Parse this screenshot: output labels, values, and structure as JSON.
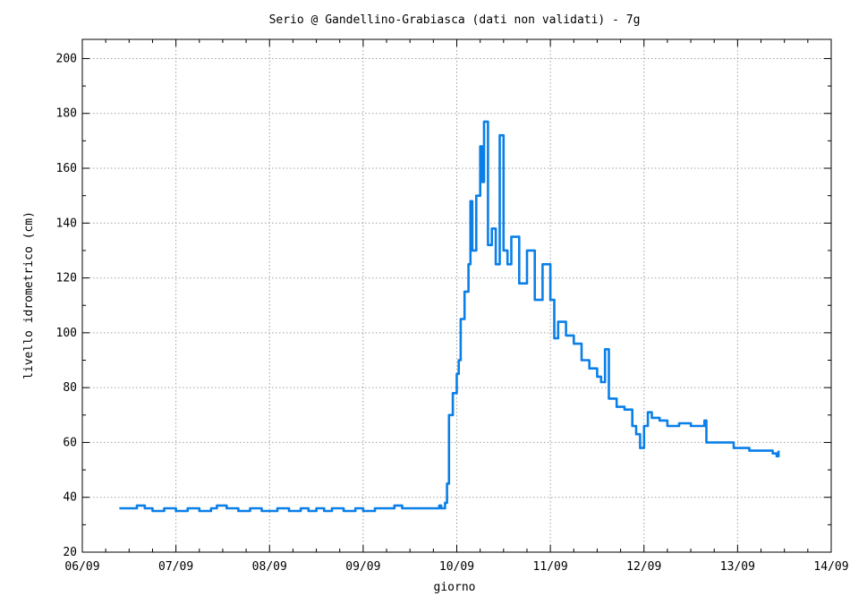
{
  "chart_data": {
    "type": "line",
    "title": "Serio @ Gandellino-Grabiasca (dati non validati) - 7g",
    "xlabel": "giorno",
    "ylabel": "livello idrometrico (cm)",
    "x_tick_labels": [
      "06/09",
      "07/09",
      "08/09",
      "09/09",
      "10/09",
      "11/09",
      "12/09",
      "13/09",
      "14/09"
    ],
    "y_ticks": [
      20,
      40,
      60,
      80,
      100,
      120,
      140,
      160,
      180,
      200
    ],
    "xlim": [
      "06/09 00:00",
      "14/09 00:00"
    ],
    "ylim": [
      20,
      207
    ],
    "grid": true,
    "line_color": "#0a7fe8",
    "series": [
      {
        "name": "",
        "points": [
          [
            "06/09 09:30",
            36
          ],
          [
            "06/09 12:00",
            36
          ],
          [
            "06/09 14:00",
            37
          ],
          [
            "06/09 16:00",
            36
          ],
          [
            "06/09 18:00",
            35
          ],
          [
            "06/09 21:00",
            36
          ],
          [
            "07/09 00:00",
            35
          ],
          [
            "07/09 03:00",
            36
          ],
          [
            "07/09 06:00",
            35
          ],
          [
            "07/09 09:00",
            36
          ],
          [
            "07/09 10:30",
            37
          ],
          [
            "07/09 13:00",
            36
          ],
          [
            "07/09 16:00",
            35
          ],
          [
            "07/09 19:00",
            36
          ],
          [
            "07/09 22:00",
            35
          ],
          [
            "08/09 02:00",
            36
          ],
          [
            "08/09 05:00",
            35
          ],
          [
            "08/09 08:00",
            36
          ],
          [
            "08/09 10:00",
            35
          ],
          [
            "08/09 12:00",
            36
          ],
          [
            "08/09 14:00",
            35
          ],
          [
            "08/09 16:00",
            36
          ],
          [
            "08/09 19:00",
            35
          ],
          [
            "08/09 22:00",
            36
          ],
          [
            "09/09 00:00",
            35
          ],
          [
            "09/09 03:00",
            36
          ],
          [
            "09/09 06:00",
            36
          ],
          [
            "09/09 08:00",
            37
          ],
          [
            "09/09 10:00",
            36
          ],
          [
            "09/09 12:00",
            36
          ],
          [
            "09/09 15:00",
            36
          ],
          [
            "09/09 18:00",
            36
          ],
          [
            "09/09 19:30",
            37
          ],
          [
            "09/09 20:00",
            36
          ],
          [
            "09/09 21:00",
            38
          ],
          [
            "09/09 21:30",
            45
          ],
          [
            "09/09 22:00",
            70
          ],
          [
            "09/09 23:00",
            78
          ],
          [
            "10/09 00:00",
            85
          ],
          [
            "10/09 00:30",
            90
          ],
          [
            "10/09 01:00",
            105
          ],
          [
            "10/09 02:00",
            115
          ],
          [
            "10/09 03:00",
            125
          ],
          [
            "10/09 03:30",
            148
          ],
          [
            "10/09 04:00",
            130
          ],
          [
            "10/09 05:00",
            150
          ],
          [
            "10/09 06:00",
            168
          ],
          [
            "10/09 06:30",
            155
          ],
          [
            "10/09 07:00",
            177
          ],
          [
            "10/09 08:00",
            132
          ],
          [
            "10/09 09:00",
            138
          ],
          [
            "10/09 10:00",
            125
          ],
          [
            "10/09 11:00",
            172
          ],
          [
            "10/09 12:00",
            130
          ],
          [
            "10/09 13:00",
            125
          ],
          [
            "10/09 14:00",
            135
          ],
          [
            "10/09 16:00",
            118
          ],
          [
            "10/09 18:00",
            130
          ],
          [
            "10/09 20:00",
            112
          ],
          [
            "10/09 22:00",
            125
          ],
          [
            "11/09 00:00",
            112
          ],
          [
            "11/09 01:00",
            98
          ],
          [
            "11/09 02:00",
            104
          ],
          [
            "11/09 04:00",
            99
          ],
          [
            "11/09 06:00",
            96
          ],
          [
            "11/09 08:00",
            90
          ],
          [
            "11/09 10:00",
            87
          ],
          [
            "11/09 12:00",
            84
          ],
          [
            "11/09 13:00",
            82
          ],
          [
            "11/09 14:00",
            94
          ],
          [
            "11/09 15:00",
            76
          ],
          [
            "11/09 17:00",
            73
          ],
          [
            "11/09 19:00",
            72
          ],
          [
            "11/09 21:00",
            66
          ],
          [
            "11/09 22:00",
            63
          ],
          [
            "11/09 23:00",
            58
          ],
          [
            "12/09 00:00",
            66
          ],
          [
            "12/09 01:00",
            71
          ],
          [
            "12/09 02:00",
            69
          ],
          [
            "12/09 04:00",
            68
          ],
          [
            "12/09 06:00",
            66
          ],
          [
            "12/09 09:00",
            67
          ],
          [
            "12/09 12:00",
            66
          ],
          [
            "12/09 15:00",
            66
          ],
          [
            "12/09 15:30",
            68
          ],
          [
            "12/09 16:00",
            60
          ],
          [
            "12/09 19:00",
            60
          ],
          [
            "12/09 23:00",
            58
          ],
          [
            "13/09 03:00",
            57
          ],
          [
            "13/09 07:00",
            57
          ],
          [
            "13/09 09:00",
            56
          ],
          [
            "13/09 10:00",
            55
          ],
          [
            "13/09 10:30",
            57
          ]
        ]
      }
    ]
  }
}
